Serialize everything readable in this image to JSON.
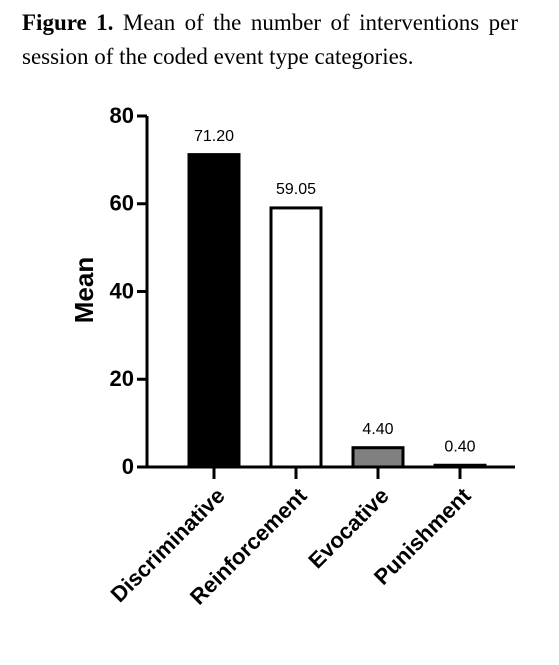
{
  "chart_data": {
    "type": "bar",
    "caption_label": "Figure 1.",
    "title": "Mean of the number of interventions per session of the coded event type categories.",
    "y_label": "Mean",
    "categories": [
      "Discriminative",
      "Reinforcement",
      "Evocative",
      "Punishment"
    ],
    "values": [
      71.2,
      59.05,
      4.4,
      0.4
    ],
    "value_labels": [
      "71.20",
      "59.05",
      "4.40",
      "0.40"
    ],
    "colors": [
      "#000000",
      "#ffffff",
      "#808080",
      "#ffffff"
    ],
    "ylim": [
      0,
      80
    ],
    "yticks": [
      0,
      20,
      40,
      60,
      80
    ],
    "grid": false
  }
}
